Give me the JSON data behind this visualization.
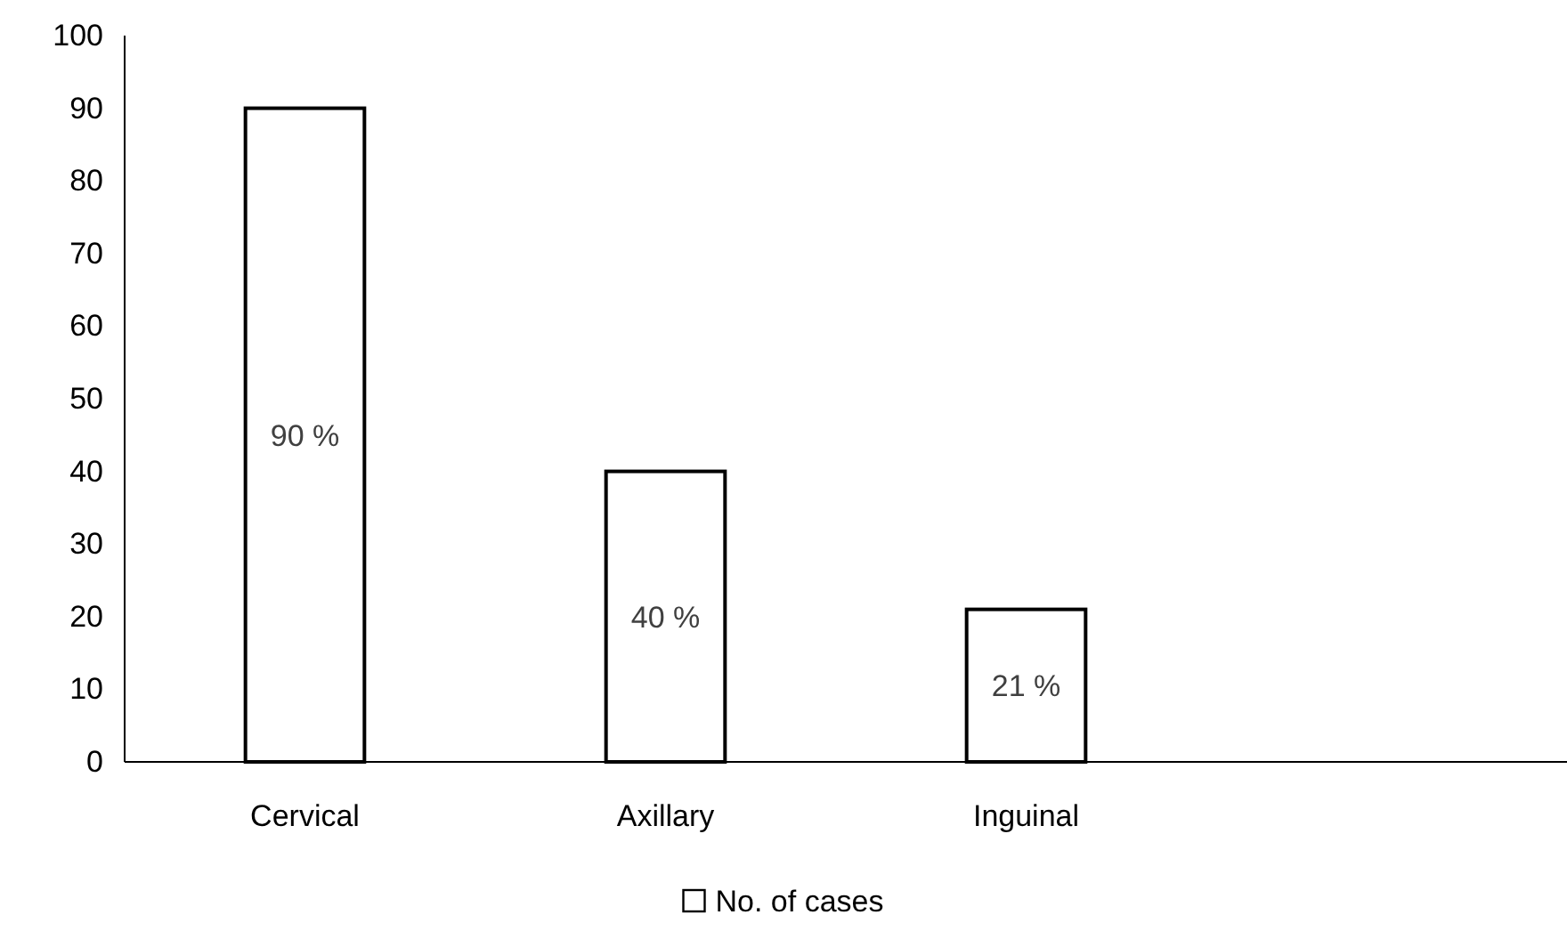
{
  "chart_data": {
    "type": "bar",
    "categories": [
      "Cervical",
      "Axillary",
      "Inguinal",
      null
    ],
    "series": [
      {
        "name": "No. of cases",
        "color": "#ffffff",
        "values": [
          90,
          40,
          21,
          null
        ],
        "value_labels": [
          "90 %",
          "40 %",
          "21 %",
          null
        ]
      }
    ],
    "ylim": [
      0,
      100
    ],
    "yticks": [
      0,
      10,
      20,
      30,
      40,
      50,
      60,
      70,
      80,
      90,
      100
    ],
    "grid": false,
    "legend": "bottom"
  }
}
